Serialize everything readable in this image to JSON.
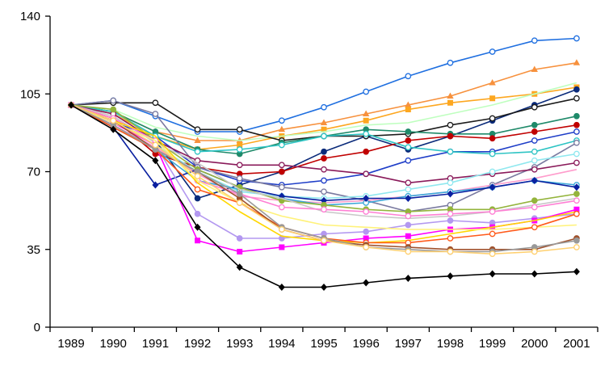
{
  "chart_data": {
    "type": "line",
    "title": "",
    "xlabel": "",
    "ylabel": "",
    "x": [
      "1989",
      "1990",
      "1991",
      "1992",
      "1993",
      "1994",
      "1995",
      "1996",
      "1997",
      "1998",
      "1999",
      "2000",
      "2001"
    ],
    "ylim": [
      0,
      140
    ],
    "yticks": [
      0,
      35,
      70,
      105,
      140
    ],
    "grid": false,
    "legend": "none",
    "series": [
      {
        "color": "#1f6fe0",
        "marker": "circle-open",
        "values": [
          100,
          102,
          95,
          88,
          88,
          93,
          99,
          106,
          113,
          119,
          124,
          129,
          130
        ]
      },
      {
        "color": "#f7913d",
        "marker": "triangle",
        "values": [
          100,
          97,
          88,
          84,
          84,
          89,
          92,
          96,
          100,
          104,
          110,
          116,
          119
        ]
      },
      {
        "color": "#fda720",
        "marker": "square",
        "values": [
          100,
          96,
          86,
          80,
          82,
          86,
          89,
          93,
          98,
          101,
          103,
          105,
          108
        ]
      },
      {
        "color": "#0a2a7a",
        "marker": "circle",
        "values": [
          100,
          92,
          84,
          58,
          64,
          70,
          79,
          86,
          80,
          86,
          93,
          100,
          107
        ]
      },
      {
        "color": "#bfffbf",
        "marker": "none",
        "values": [
          100,
          98,
          90,
          86,
          84,
          86,
          88,
          91,
          92,
          96,
          100,
          105,
          110
        ]
      },
      {
        "color": "#1a1a1a",
        "marker": "circle-open",
        "values": [
          100,
          101,
          101,
          89,
          89,
          84,
          86,
          86,
          87,
          91,
          94,
          99,
          103
        ]
      },
      {
        "color": "#1f8a6a",
        "marker": "circle",
        "values": [
          100,
          97,
          88,
          80,
          78,
          83,
          86,
          89,
          88,
          87,
          87,
          91,
          95
        ]
      },
      {
        "color": "#c00000",
        "marker": "circle",
        "values": [
          100,
          94,
          78,
          72,
          69,
          70,
          76,
          79,
          84,
          86,
          85,
          88,
          91
        ]
      },
      {
        "color": "#1f3ec8",
        "marker": "circle-open",
        "values": [
          100,
          92,
          86,
          72,
          66,
          64,
          66,
          69,
          75,
          79,
          79,
          84,
          88
        ]
      },
      {
        "color": "#2ec4c4",
        "marker": "circle-open",
        "values": [
          100,
          97,
          86,
          79,
          80,
          82,
          86,
          87,
          81,
          79,
          78,
          79,
          84
        ]
      },
      {
        "color": "#7a7aa0",
        "marker": "circle-open",
        "values": [
          100,
          102,
          96,
          72,
          67,
          63,
          61,
          57,
          52,
          55,
          64,
          72,
          83
        ]
      },
      {
        "color": "#8a1a5a",
        "marker": "circle-open",
        "values": [
          100,
          96,
          84,
          75,
          73,
          73,
          71,
          69,
          65,
          67,
          69,
          71,
          74
        ]
      },
      {
        "color": "#8fe8ef",
        "marker": "circle-open",
        "values": [
          100,
          92,
          82,
          70,
          61,
          59,
          58,
          59,
          62,
          65,
          70,
          75,
          78
        ]
      },
      {
        "color": "#ff9ccc",
        "marker": "none",
        "values": [
          100,
          91,
          81,
          69,
          59,
          57,
          56,
          57,
          59,
          61,
          64,
          67,
          71
        ]
      },
      {
        "color": "#3aa8d8",
        "marker": "circle-open",
        "values": [
          100,
          90,
          80,
          66,
          62,
          58,
          55,
          56,
          59,
          61,
          63,
          66,
          64
        ]
      },
      {
        "color": "#0a20a0",
        "marker": "diamond",
        "values": [
          100,
          90,
          64,
          71,
          63,
          59,
          57,
          58,
          58,
          60,
          63,
          66,
          63
        ]
      },
      {
        "color": "#94b43c",
        "marker": "circle",
        "values": [
          100,
          98,
          84,
          71,
          63,
          57,
          55,
          53,
          52,
          53,
          53,
          57,
          60
        ]
      },
      {
        "color": "#c8c8c8",
        "marker": "none",
        "values": [
          100,
          95,
          83,
          74,
          62,
          58,
          52,
          50,
          49,
          50,
          52,
          55,
          58
        ]
      },
      {
        "color": "#ff7fd4",
        "marker": "circle-open",
        "values": [
          100,
          94,
          84,
          66,
          60,
          54,
          53,
          52,
          50,
          51,
          52,
          54,
          57
        ]
      },
      {
        "color": "#b398f0",
        "marker": "circle",
        "values": [
          100,
          93,
          82,
          51,
          40,
          40,
          42,
          43,
          46,
          48,
          47,
          49,
          51
        ]
      },
      {
        "color": "#ff00ff",
        "marker": "square",
        "values": [
          100,
          92,
          82,
          39,
          34,
          36,
          38,
          40,
          41,
          44,
          45,
          48,
          53
        ]
      },
      {
        "color": "#ffd700",
        "marker": "none",
        "values": [
          100,
          93,
          86,
          65,
          52,
          41,
          39,
          38,
          39,
          42,
          45,
          48,
          52
        ]
      },
      {
        "color": "#fff27a",
        "marker": "none",
        "values": [
          100,
          92,
          84,
          66,
          56,
          50,
          46,
          45,
          44,
          44,
          44,
          45,
          46
        ]
      },
      {
        "color": "#ff5a1a",
        "marker": "circle-open",
        "values": [
          100,
          90,
          80,
          62,
          56,
          45,
          40,
          38,
          38,
          40,
          42,
          45,
          51
        ]
      },
      {
        "color": "#a0522d",
        "marker": "circle",
        "values": [
          100,
          93,
          80,
          70,
          58,
          44,
          39,
          37,
          36,
          35,
          35,
          35,
          40
        ]
      },
      {
        "color": "#999999",
        "marker": "circle",
        "values": [
          100,
          91,
          80,
          70,
          60,
          45,
          40,
          36,
          35,
          34,
          34,
          36,
          39
        ]
      },
      {
        "color": "#ffd070",
        "marker": "circle-open",
        "values": [
          100,
          93,
          82,
          68,
          56,
          44,
          39,
          36,
          34,
          34,
          33,
          34,
          36
        ]
      },
      {
        "color": "#000000",
        "marker": "diamond",
        "values": [
          100,
          89,
          75,
          45,
          27,
          18,
          18,
          20,
          22,
          23,
          24,
          24,
          25
        ]
      }
    ]
  }
}
